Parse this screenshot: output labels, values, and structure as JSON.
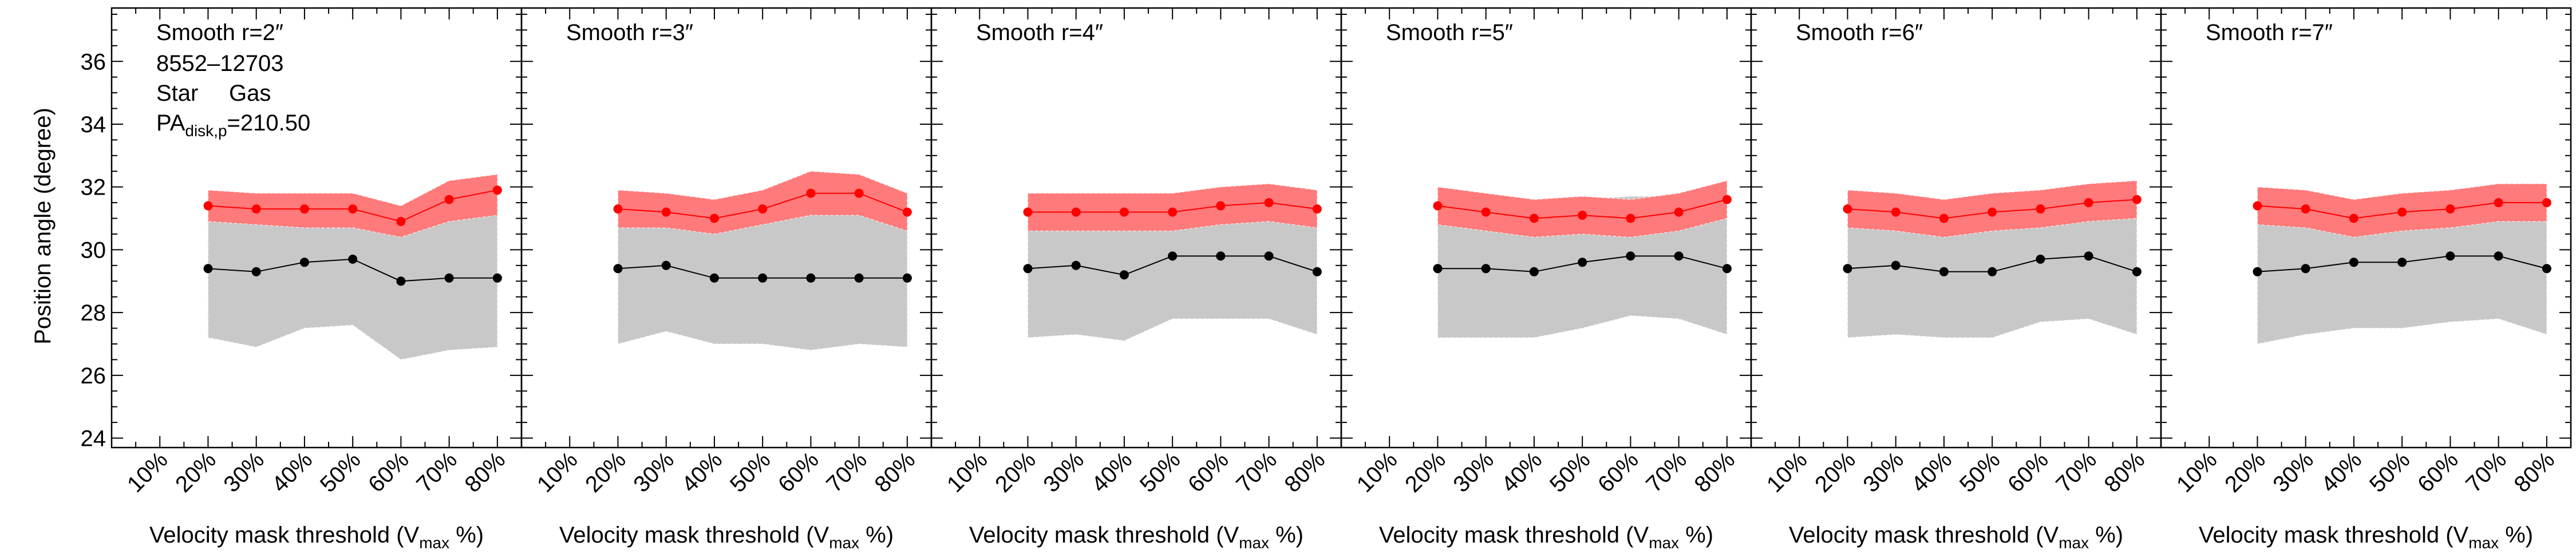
{
  "figure": {
    "ylabel": "Position angle (degree)",
    "xlabel_main": "Velocity mask threshold (V",
    "xlabel_sub": "max",
    "xlabel_tail": " %)",
    "pa_label_main": "PA",
    "pa_label_sub": "disk,p",
    "pa_label_value": "=210.50",
    "legend_star": "Star",
    "legend_gas": "Gas",
    "plate_ifu": "8552–12703",
    "colors": {
      "star": "#000000",
      "gas": "#ff0000",
      "star_band": "#c8c8c8",
      "gas_band": "#ff7a7a"
    }
  },
  "chart_data": [
    {
      "type": "line",
      "title": "Smooth r=2″",
      "xlabel": "Velocity mask threshold (Vmax %)",
      "ylabel": "Position angle (degree)",
      "x": [
        20,
        30,
        40,
        50,
        60,
        70,
        80
      ],
      "x_ticks": [
        "10%",
        "20%",
        "30%",
        "40%",
        "50%",
        "60%",
        "70%",
        "80%"
      ],
      "ylim": [
        23.7,
        37.7
      ],
      "y_ticks": [
        24,
        26,
        28,
        30,
        32,
        34,
        36
      ],
      "series": [
        {
          "name": "Star",
          "color": "#000000",
          "values": [
            29.4,
            29.3,
            29.6,
            29.7,
            29.0,
            29.1,
            29.1
          ],
          "band_low": [
            27.2,
            26.9,
            27.5,
            27.6,
            26.5,
            26.8,
            26.9
          ],
          "band_high": [
            31.5,
            31.4,
            31.6,
            31.6,
            31.2,
            31.3,
            31.5
          ]
        },
        {
          "name": "Gas",
          "color": "#ff0000",
          "values": [
            31.4,
            31.3,
            31.3,
            31.3,
            30.9,
            31.6,
            31.9
          ],
          "band_low": [
            30.9,
            30.8,
            30.7,
            30.7,
            30.4,
            30.9,
            31.1
          ],
          "band_high": [
            31.9,
            31.8,
            31.8,
            31.8,
            31.4,
            32.2,
            32.4
          ]
        }
      ]
    },
    {
      "type": "line",
      "title": "Smooth r=3″",
      "xlabel": "Velocity mask threshold (Vmax %)",
      "x": [
        20,
        30,
        40,
        50,
        60,
        70,
        80
      ],
      "x_ticks": [
        "10%",
        "20%",
        "30%",
        "40%",
        "50%",
        "60%",
        "70%",
        "80%"
      ],
      "ylim": [
        23.7,
        37.7
      ],
      "series": [
        {
          "name": "Star",
          "color": "#000000",
          "values": [
            29.4,
            29.5,
            29.1,
            29.1,
            29.1,
            29.1,
            29.1
          ],
          "band_low": [
            27.0,
            27.4,
            27.0,
            27.0,
            26.8,
            27.0,
            26.9
          ],
          "band_high": [
            31.3,
            31.3,
            31.4,
            31.4,
            31.3,
            31.2,
            31.3
          ]
        },
        {
          "name": "Gas",
          "color": "#ff0000",
          "values": [
            31.3,
            31.2,
            31.0,
            31.3,
            31.8,
            31.8,
            31.2
          ],
          "band_low": [
            30.7,
            30.7,
            30.5,
            30.8,
            31.1,
            31.1,
            30.6
          ],
          "band_high": [
            31.9,
            31.8,
            31.6,
            31.9,
            32.5,
            32.4,
            31.8
          ]
        }
      ]
    },
    {
      "type": "line",
      "title": "Smooth r=4″",
      "xlabel": "Velocity mask threshold (Vmax %)",
      "x": [
        20,
        30,
        40,
        50,
        60,
        70,
        80
      ],
      "x_ticks": [
        "10%",
        "20%",
        "30%",
        "40%",
        "50%",
        "60%",
        "70%",
        "80%"
      ],
      "ylim": [
        23.7,
        37.7
      ],
      "series": [
        {
          "name": "Star",
          "color": "#000000",
          "values": [
            29.4,
            29.5,
            29.2,
            29.8,
            29.8,
            29.8,
            29.3
          ],
          "band_low": [
            27.2,
            27.3,
            27.1,
            27.8,
            27.8,
            27.8,
            27.3
          ],
          "band_high": [
            31.5,
            31.6,
            31.3,
            31.7,
            31.8,
            31.8,
            31.6
          ]
        },
        {
          "name": "Gas",
          "color": "#ff0000",
          "values": [
            31.2,
            31.2,
            31.2,
            31.2,
            31.4,
            31.5,
            31.3
          ],
          "band_low": [
            30.6,
            30.6,
            30.6,
            30.6,
            30.8,
            30.9,
            30.7
          ],
          "band_high": [
            31.8,
            31.8,
            31.8,
            31.8,
            32.0,
            32.1,
            31.9
          ]
        }
      ]
    },
    {
      "type": "line",
      "title": "Smooth r=5″",
      "xlabel": "Velocity mask threshold (Vmax %)",
      "x": [
        20,
        30,
        40,
        50,
        60,
        70,
        80
      ],
      "x_ticks": [
        "10%",
        "20%",
        "30%",
        "40%",
        "50%",
        "60%",
        "70%",
        "80%"
      ],
      "ylim": [
        23.7,
        37.7
      ],
      "series": [
        {
          "name": "Star",
          "color": "#000000",
          "values": [
            29.4,
            29.4,
            29.3,
            29.6,
            29.8,
            29.8,
            29.4
          ],
          "band_low": [
            27.2,
            27.2,
            27.2,
            27.5,
            27.9,
            27.8,
            27.3
          ],
          "band_high": [
            31.5,
            31.4,
            31.4,
            31.6,
            31.7,
            31.7,
            31.5
          ]
        },
        {
          "name": "Gas",
          "color": "#ff0000",
          "values": [
            31.4,
            31.2,
            31.0,
            31.1,
            31.0,
            31.2,
            31.6
          ],
          "band_low": [
            30.8,
            30.6,
            30.4,
            30.5,
            30.4,
            30.6,
            31.0
          ],
          "band_high": [
            32.0,
            31.8,
            31.6,
            31.7,
            31.6,
            31.8,
            32.2
          ]
        }
      ]
    },
    {
      "type": "line",
      "title": "Smooth r=6″",
      "xlabel": "Velocity mask threshold (Vmax %)",
      "x": [
        20,
        30,
        40,
        50,
        60,
        70,
        80
      ],
      "x_ticks": [
        "10%",
        "20%",
        "30%",
        "40%",
        "50%",
        "60%",
        "70%",
        "80%"
      ],
      "ylim": [
        23.7,
        37.7
      ],
      "series": [
        {
          "name": "Star",
          "color": "#000000",
          "values": [
            29.4,
            29.5,
            29.3,
            29.3,
            29.7,
            29.8,
            29.3
          ],
          "band_low": [
            27.2,
            27.3,
            27.2,
            27.2,
            27.7,
            27.8,
            27.3
          ],
          "band_high": [
            31.5,
            31.5,
            31.4,
            31.4,
            31.6,
            31.7,
            31.5
          ]
        },
        {
          "name": "Gas",
          "color": "#ff0000",
          "values": [
            31.3,
            31.2,
            31.0,
            31.2,
            31.3,
            31.5,
            31.6
          ],
          "band_low": [
            30.7,
            30.6,
            30.4,
            30.6,
            30.7,
            30.9,
            31.0
          ],
          "band_high": [
            31.9,
            31.8,
            31.6,
            31.8,
            31.9,
            32.1,
            32.2
          ]
        }
      ]
    },
    {
      "type": "line",
      "title": "Smooth r=7″",
      "xlabel": "Velocity mask threshold (Vmax %)",
      "x": [
        20,
        30,
        40,
        50,
        60,
        70,
        80
      ],
      "x_ticks": [
        "10%",
        "20%",
        "30%",
        "40%",
        "50%",
        "60%",
        "70%",
        "80%"
      ],
      "ylim": [
        23.7,
        37.7
      ],
      "series": [
        {
          "name": "Star",
          "color": "#000000",
          "values": [
            29.3,
            29.4,
            29.6,
            29.6,
            29.8,
            29.8,
            29.4
          ],
          "band_low": [
            27.0,
            27.3,
            27.5,
            27.5,
            27.7,
            27.8,
            27.3
          ],
          "band_high": [
            31.5,
            31.5,
            31.5,
            31.6,
            31.7,
            31.7,
            31.5
          ]
        },
        {
          "name": "Gas",
          "color": "#ff0000",
          "values": [
            31.4,
            31.3,
            31.0,
            31.2,
            31.3,
            31.5,
            31.5
          ],
          "band_low": [
            30.8,
            30.7,
            30.4,
            30.6,
            30.7,
            30.9,
            30.9
          ],
          "band_high": [
            32.0,
            31.9,
            31.6,
            31.8,
            31.9,
            32.1,
            32.1
          ]
        }
      ]
    }
  ]
}
